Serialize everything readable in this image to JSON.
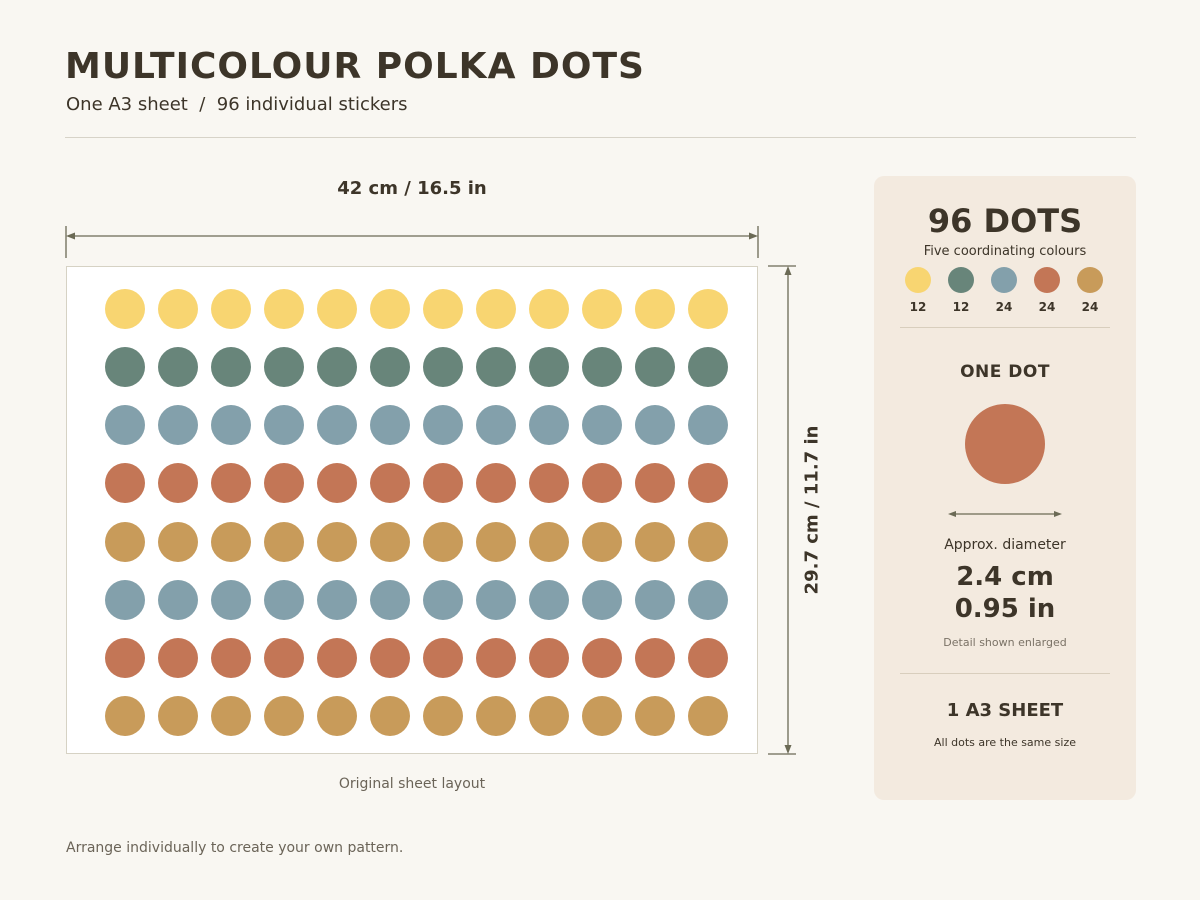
{
  "header": {
    "title": "MULTICOLOUR POLKA DOTS",
    "subtitle": "One A3 sheet  /  96 individual stickers"
  },
  "sheet": {
    "width_label": "42 cm / 16.5 in",
    "height_label": "29.7 cm / 11.7 in",
    "caption": "Original sheet layout",
    "columns": 12,
    "row_colors": [
      "#f8d571",
      "#68857a",
      "#83a0ab",
      "#c37656",
      "#c89b5a",
      "#83a0ab",
      "#c37656",
      "#c89b5a"
    ]
  },
  "panel": {
    "count_title": "96 DOTS",
    "count_subtitle": "Five coordinating colours",
    "colors": [
      {
        "color": "#f8d571",
        "count": "12"
      },
      {
        "color": "#68857a",
        "count": "12"
      },
      {
        "color": "#83a0ab",
        "count": "24"
      },
      {
        "color": "#c37656",
        "count": "24"
      },
      {
        "color": "#c89b5a",
        "count": "24"
      }
    ],
    "one_dot_heading": "ONE DOT",
    "one_dot_color": "#c37656",
    "diameter_label": "Approx. diameter",
    "diameter_metric": "2.4 cm",
    "diameter_imperial": "0.95 in",
    "enlarged_note": "Detail shown enlarged",
    "sheet_heading": "1 A3 SHEET",
    "sheet_note": "All dots are the same size"
  },
  "footer": {
    "note": "Arrange individually to create your own pattern."
  }
}
